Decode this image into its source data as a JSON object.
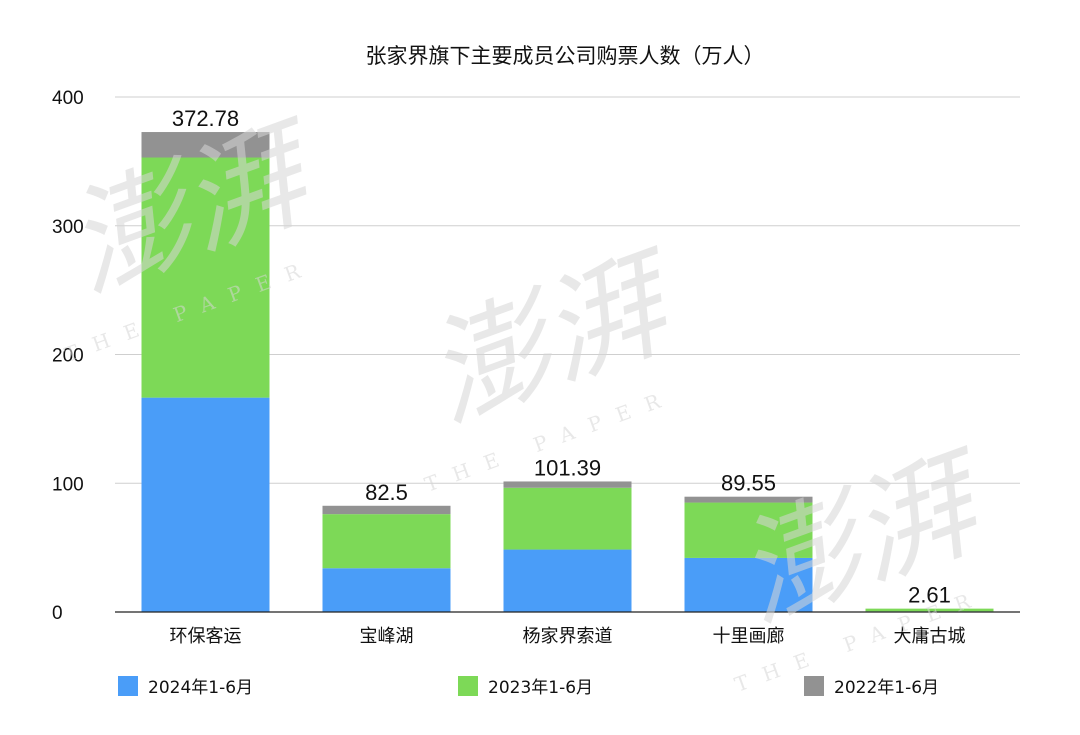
{
  "chart_data": {
    "type": "bar",
    "stacked": true,
    "title": "张家界旗下主要成员公司购票人数（万人）",
    "categories": [
      "环保客运",
      "宝峰湖",
      "杨家界索道",
      "十里画廊",
      "大庸古城"
    ],
    "series": [
      {
        "name": "2024年1-6月",
        "color": "#4a9df8",
        "values": [
          166.5,
          34.0,
          48.5,
          42.0,
          0.5
        ]
      },
      {
        "name": "2023年1-6月",
        "color": "#7dd957",
        "values": [
          186.5,
          42.0,
          48.0,
          43.0,
          2.11
        ]
      },
      {
        "name": "2022年1-6月",
        "color": "#929292",
        "values": [
          19.78,
          6.5,
          4.89,
          4.55,
          0.0
        ]
      }
    ],
    "totals": [
      "372.78",
      "82.5",
      "101.39",
      "89.55",
      "2.61"
    ],
    "ylim": [
      0,
      400
    ],
    "yticks": [
      0,
      100,
      200,
      300,
      400
    ],
    "grid": true,
    "legend_position": "bottom"
  },
  "watermark": {
    "brand": "澎湃",
    "tagline": "THE PAPER"
  }
}
